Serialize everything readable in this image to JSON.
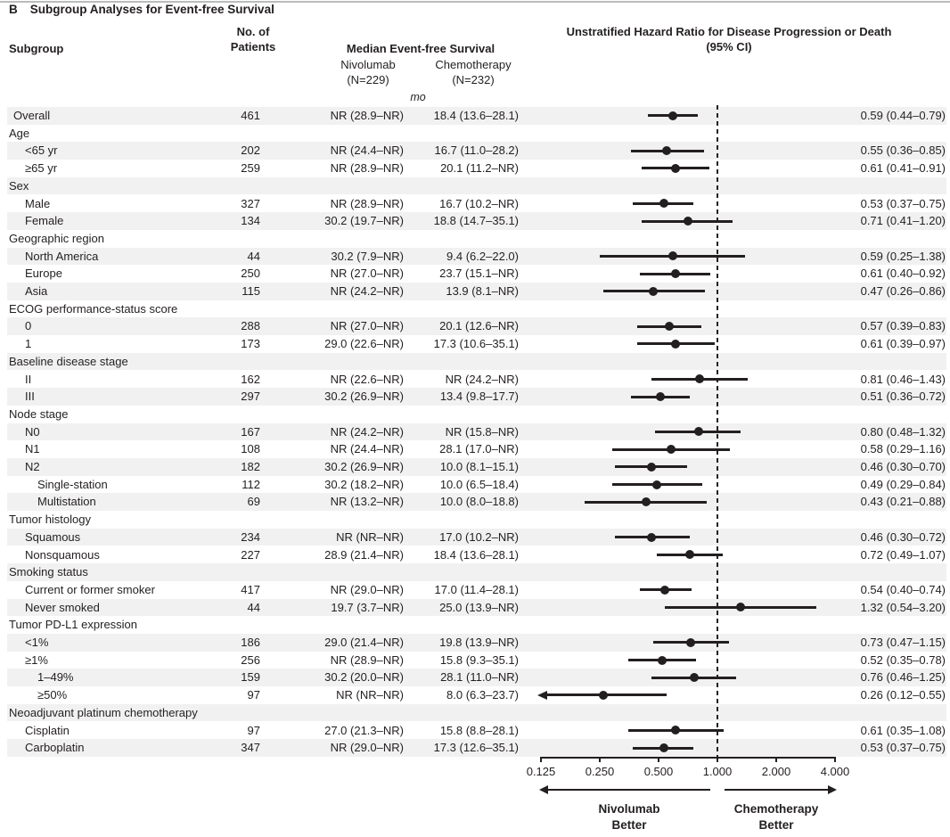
{
  "panel": {
    "letter": "B",
    "title": "Subgroup Analyses for Event-free Survival"
  },
  "table_headers": {
    "subgroup": "Subgroup",
    "patients": [
      "No. of",
      "Patients"
    ],
    "median": "Median Event-free Survival",
    "nivolumab": [
      "Nivolumab",
      "(N=229)"
    ],
    "chemotherapy": [
      "Chemotherapy",
      "(N=232)"
    ],
    "units": "mo",
    "hazard": [
      "Unstratified Hazard Ratio for Disease Progression or Death",
      "(95% CI)"
    ]
  },
  "legend": {
    "left": [
      "Nivolumab",
      "Better"
    ],
    "right": [
      "Chemotherapy",
      "Better"
    ]
  },
  "colors": {
    "ink": "#231f20",
    "band": "#f1f1f2",
    "rule": "#b9bbbd"
  },
  "chart_data": {
    "type": "scatter",
    "subtype": "forest-plot",
    "title": "Subgroup Analyses for Event-free Survival",
    "xlabel": "Unstratified Hazard Ratio for Disease Progression or Death (95% CI)",
    "x_scale": "log2",
    "xlim": [
      0.125,
      4.0
    ],
    "x_ticks": [
      {
        "label": "0.125",
        "value": 0.125
      },
      {
        "label": "0.250",
        "value": 0.25
      },
      {
        "label": "0.500",
        "value": 0.5
      },
      {
        "label": "1.000",
        "value": 1.0
      },
      {
        "label": "2.000",
        "value": 2.0
      },
      {
        "label": "4.000",
        "value": 4.0
      }
    ],
    "reference_line": 1.0,
    "grid": false,
    "rows": [
      {
        "label": "Overall",
        "indent": 1,
        "patients": "461",
        "nivolumab": "NR (28.9–NR)",
        "chemotherapy": "18.4 (13.6–28.1)",
        "hr": 0.59,
        "ci_low": 0.44,
        "ci_high": 0.79,
        "hr_text": "0.59 (0.44–0.79)"
      },
      {
        "label": "Age",
        "indent": 0,
        "header": true
      },
      {
        "label": "<65 yr",
        "indent": 2,
        "patients": "202",
        "nivolumab": "NR (24.4–NR)",
        "chemotherapy": "16.7 (11.0–28.2)",
        "hr": 0.55,
        "ci_low": 0.36,
        "ci_high": 0.85,
        "hr_text": "0.55 (0.36–0.85)"
      },
      {
        "label": "≥65 yr",
        "indent": 2,
        "patients": "259",
        "nivolumab": "NR (28.9–NR)",
        "chemotherapy": "20.1 (11.2–NR)",
        "hr": 0.61,
        "ci_low": 0.41,
        "ci_high": 0.91,
        "hr_text": "0.61 (0.41–0.91)"
      },
      {
        "label": "Sex",
        "indent": 0,
        "header": true
      },
      {
        "label": "Male",
        "indent": 2,
        "patients": "327",
        "nivolumab": "NR (28.9–NR)",
        "chemotherapy": "16.7 (10.2–NR)",
        "hr": 0.53,
        "ci_low": 0.37,
        "ci_high": 0.75,
        "hr_text": "0.53 (0.37–0.75)"
      },
      {
        "label": "Female",
        "indent": 2,
        "patients": "134",
        "nivolumab": "30.2 (19.7–NR)",
        "chemotherapy": "18.8 (14.7–35.1)",
        "hr": 0.71,
        "ci_low": 0.41,
        "ci_high": 1.2,
        "hr_text": "0.71 (0.41–1.20)"
      },
      {
        "label": "Geographic region",
        "indent": 0,
        "header": true
      },
      {
        "label": "North America",
        "indent": 2,
        "patients": "44",
        "nivolumab": "30.2 (7.9–NR)",
        "chemotherapy": "9.4 (6.2–22.0)",
        "hr": 0.59,
        "ci_low": 0.25,
        "ci_high": 1.38,
        "hr_text": "0.59 (0.25–1.38)"
      },
      {
        "label": "Europe",
        "indent": 2,
        "patients": "250",
        "nivolumab": "NR (27.0–NR)",
        "chemotherapy": "23.7 (15.1–NR)",
        "hr": 0.61,
        "ci_low": 0.4,
        "ci_high": 0.92,
        "hr_text": "0.61 (0.40–0.92)"
      },
      {
        "label": "Asia",
        "indent": 2,
        "patients": "115",
        "nivolumab": "NR (24.2–NR)",
        "chemotherapy": "13.9 (8.1–NR)",
        "hr": 0.47,
        "ci_low": 0.26,
        "ci_high": 0.86,
        "hr_text": "0.47 (0.26–0.86)"
      },
      {
        "label": "ECOG performance-status score",
        "indent": 0,
        "header": true
      },
      {
        "label": "0",
        "indent": 2,
        "patients": "288",
        "nivolumab": "NR (27.0–NR)",
        "chemotherapy": "20.1 (12.6–NR)",
        "hr": 0.57,
        "ci_low": 0.39,
        "ci_high": 0.83,
        "hr_text": "0.57 (0.39–0.83)"
      },
      {
        "label": "1",
        "indent": 2,
        "patients": "173",
        "nivolumab": "29.0 (22.6–NR)",
        "chemotherapy": "17.3 (10.6–35.1)",
        "hr": 0.61,
        "ci_low": 0.39,
        "ci_high": 0.97,
        "hr_text": "0.61 (0.39–0.97)"
      },
      {
        "label": "Baseline disease stage",
        "indent": 0,
        "header": true
      },
      {
        "label": "II",
        "indent": 2,
        "patients": "162",
        "nivolumab": "NR (22.6–NR)",
        "chemotherapy": "NR (24.2–NR)",
        "hr": 0.81,
        "ci_low": 0.46,
        "ci_high": 1.43,
        "hr_text": "0.81 (0.46–1.43)"
      },
      {
        "label": "III",
        "indent": 2,
        "patients": "297",
        "nivolumab": "30.2 (26.9–NR)",
        "chemotherapy": "13.4 (9.8–17.7)",
        "hr": 0.51,
        "ci_low": 0.36,
        "ci_high": 0.72,
        "hr_text": "0.51 (0.36–0.72)"
      },
      {
        "label": "Node stage",
        "indent": 0,
        "header": true
      },
      {
        "label": "N0",
        "indent": 2,
        "patients": "167",
        "nivolumab": "NR (24.2–NR)",
        "chemotherapy": "NR (15.8–NR)",
        "hr": 0.8,
        "ci_low": 0.48,
        "ci_high": 1.32,
        "hr_text": "0.80 (0.48–1.32)"
      },
      {
        "label": "N1",
        "indent": 2,
        "patients": "108",
        "nivolumab": "NR (24.4–NR)",
        "chemotherapy": "28.1 (17.0–NR)",
        "hr": 0.58,
        "ci_low": 0.29,
        "ci_high": 1.16,
        "hr_text": "0.58 (0.29–1.16)"
      },
      {
        "label": "N2",
        "indent": 2,
        "patients": "182",
        "nivolumab": "30.2 (26.9–NR)",
        "chemotherapy": "10.0 (8.1–15.1)",
        "hr": 0.46,
        "ci_low": 0.3,
        "ci_high": 0.7,
        "hr_text": "0.46 (0.30–0.70)"
      },
      {
        "label": "Single-station",
        "indent": 3,
        "patients": "112",
        "nivolumab": "30.2 (18.2–NR)",
        "chemotherapy": "10.0 (6.5–18.4)",
        "hr": 0.49,
        "ci_low": 0.29,
        "ci_high": 0.84,
        "hr_text": "0.49 (0.29–0.84)"
      },
      {
        "label": "Multistation",
        "indent": 3,
        "patients": "69",
        "nivolumab": "NR (13.2–NR)",
        "chemotherapy": "10.0 (8.0–18.8)",
        "hr": 0.43,
        "ci_low": 0.21,
        "ci_high": 0.88,
        "hr_text": "0.43 (0.21–0.88)"
      },
      {
        "label": "Tumor histology",
        "indent": 0,
        "header": true
      },
      {
        "label": "Squamous",
        "indent": 2,
        "patients": "234",
        "nivolumab": "NR (NR–NR)",
        "chemotherapy": "17.0 (10.2–NR)",
        "hr": 0.46,
        "ci_low": 0.3,
        "ci_high": 0.72,
        "hr_text": "0.46 (0.30–0.72)"
      },
      {
        "label": "Nonsquamous",
        "indent": 2,
        "patients": "227",
        "nivolumab": "28.9 (21.4–NR)",
        "chemotherapy": "18.4 (13.6–28.1)",
        "hr": 0.72,
        "ci_low": 0.49,
        "ci_high": 1.07,
        "hr_text": "0.72 (0.49–1.07)"
      },
      {
        "label": "Smoking status",
        "indent": 0,
        "header": true
      },
      {
        "label": "Current or former smoker",
        "indent": 2,
        "patients": "417",
        "nivolumab": "NR (29.0–NR)",
        "chemotherapy": "17.0 (11.4–28.1)",
        "hr": 0.54,
        "ci_low": 0.4,
        "ci_high": 0.74,
        "hr_text": "0.54 (0.40–0.74)"
      },
      {
        "label": "Never smoked",
        "indent": 2,
        "patients": "44",
        "nivolumab": "19.7 (3.7–NR)",
        "chemotherapy": "25.0 (13.9–NR)",
        "hr": 1.32,
        "ci_low": 0.54,
        "ci_high": 3.2,
        "hr_text": "1.32 (0.54–3.20)"
      },
      {
        "label": "Tumor PD-L1 expression",
        "indent": 0,
        "header": true
      },
      {
        "label": "<1%",
        "indent": 2,
        "patients": "186",
        "nivolumab": "29.0 (21.4–NR)",
        "chemotherapy": "19.8 (13.9–NR)",
        "hr": 0.73,
        "ci_low": 0.47,
        "ci_high": 1.15,
        "hr_text": "0.73 (0.47–1.15)"
      },
      {
        "label": "≥1%",
        "indent": 2,
        "patients": "256",
        "nivolumab": "NR (28.9–NR)",
        "chemotherapy": "15.8 (9.3–35.1)",
        "hr": 0.52,
        "ci_low": 0.35,
        "ci_high": 0.78,
        "hr_text": "0.52 (0.35–0.78)"
      },
      {
        "label": "1–49%",
        "indent": 3,
        "patients": "159",
        "nivolumab": "30.2 (20.0–NR)",
        "chemotherapy": "28.1 (11.0–NR)",
        "hr": 0.76,
        "ci_low": 0.46,
        "ci_high": 1.25,
        "hr_text": "0.76 (0.46–1.25)"
      },
      {
        "label": "≥50%",
        "indent": 3,
        "patients": "97",
        "nivolumab": "NR (NR–NR)",
        "chemotherapy": "8.0 (6.3–23.7)",
        "hr": 0.26,
        "ci_low": 0.12,
        "ci_high": 0.55,
        "hr_text": "0.26 (0.12–0.55)",
        "arrow_low": true
      },
      {
        "label": "Neoadjuvant platinum chemotherapy",
        "indent": 0,
        "header": true
      },
      {
        "label": "Cisplatin",
        "indent": 2,
        "patients": "97",
        "nivolumab": "27.0 (21.3–NR)",
        "chemotherapy": "15.8 (8.8–28.1)",
        "hr": 0.61,
        "ci_low": 0.35,
        "ci_high": 1.08,
        "hr_text": "0.61 (0.35–1.08)"
      },
      {
        "label": "Carboplatin",
        "indent": 2,
        "patients": "347",
        "nivolumab": "NR (29.0–NR)",
        "chemotherapy": "17.3 (12.6–35.1)",
        "hr": 0.53,
        "ci_low": 0.37,
        "ci_high": 0.75,
        "hr_text": "0.53 (0.37–0.75)"
      }
    ]
  }
}
